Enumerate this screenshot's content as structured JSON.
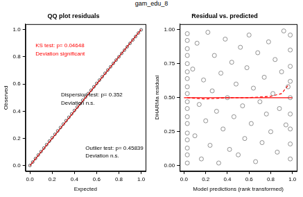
{
  "title": "gam_edu_8",
  "chart_data": [
    {
      "type": "scatter",
      "title": "QQ plot residuals",
      "x_label": "Expected",
      "y_label": "Observed",
      "xlim": [
        -0.04,
        1.04
      ],
      "ylim": [
        -0.04,
        1.04
      ],
      "xticks": [
        {
          "value": 0,
          "label": "0.0"
        },
        {
          "value": 0.2,
          "label": "0.2"
        },
        {
          "value": 0.4,
          "label": "0.4"
        },
        {
          "value": 0.6,
          "label": "0.6"
        },
        {
          "value": 0.8,
          "label": "0.8"
        },
        {
          "value": 1,
          "label": "1.0"
        }
      ],
      "yticks": [
        {
          "value": 0,
          "label": "0.0"
        },
        {
          "value": 0.2,
          "label": "0.2"
        },
        {
          "value": 0.4,
          "label": "0.4"
        },
        {
          "value": 0.6,
          "label": "0.6"
        },
        {
          "value": 0.8,
          "label": "0.8"
        },
        {
          "value": 1,
          "label": "1.0"
        }
      ],
      "grid": false,
      "series": [
        {
          "type": "scatter",
          "marker": "circle",
          "color": "#000000",
          "x": [
            0,
            0.025,
            0.05,
            0.075,
            0.1,
            0.125,
            0.15,
            0.175,
            0.2,
            0.225,
            0.25,
            0.275,
            0.3,
            0.325,
            0.35,
            0.375,
            0.4,
            0.425,
            0.45,
            0.475,
            0.5,
            0.525,
            0.55,
            0.575,
            0.6,
            0.625,
            0.65,
            0.675,
            0.7,
            0.725,
            0.75,
            0.775,
            0.8,
            0.825,
            0.85,
            0.875,
            0.9,
            0.925,
            0.95,
            0.975,
            1
          ],
          "values": [
            0.002,
            0.027,
            0.053,
            0.079,
            0.104,
            0.13,
            0.155,
            0.181,
            0.206,
            0.231,
            0.256,
            0.281,
            0.306,
            0.331,
            0.356,
            0.381,
            0.406,
            0.431,
            0.456,
            0.481,
            0.505,
            0.53,
            0.555,
            0.58,
            0.605,
            0.629,
            0.654,
            0.679,
            0.703,
            0.727,
            0.752,
            0.776,
            0.8,
            0.825,
            0.849,
            0.874,
            0.899,
            0.924,
            0.949,
            0.975,
            0.998
          ]
        },
        {
          "type": "line",
          "line_style": "solid",
          "color": "#ff0000",
          "x": [
            0,
            1
          ],
          "values": [
            0,
            1
          ]
        }
      ],
      "annotations": [
        {
          "text": "KS test: p= 0.04648",
          "color": "#ff0000"
        },
        {
          "text": "Deviation significant",
          "color": "#ff0000"
        },
        {
          "text": "Dispersion test: p= 0.352",
          "color": "#000000"
        },
        {
          "text": "Deviation n.s.",
          "color": "#000000"
        },
        {
          "text": "Outlier test: p= 0.45839",
          "color": "#000000"
        },
        {
          "text": "Deviation n.s.",
          "color": "#000000"
        }
      ]
    },
    {
      "type": "scatter",
      "title": "Residual vs. predicted",
      "x_label": "Model predictions (rank transformed)",
      "y_label": "DHARMa residual",
      "xlim": [
        -0.04,
        1.04
      ],
      "ylim": [
        -0.04,
        1.04
      ],
      "xticks": [
        {
          "value": 0,
          "label": "0.0"
        },
        {
          "value": 0.2,
          "label": "0.2"
        },
        {
          "value": 0.4,
          "label": "0.4"
        },
        {
          "value": 0.6,
          "label": "0.6"
        },
        {
          "value": 0.8,
          "label": "0.8"
        },
        {
          "value": 1,
          "label": "1.0"
        }
      ],
      "yticks": [
        {
          "value": 0,
          "label": "0.00"
        },
        {
          "value": 0.25,
          "label": "0.25"
        },
        {
          "value": 0.5,
          "label": "0.50"
        },
        {
          "value": 0.75,
          "label": "0.75"
        },
        {
          "value": 1,
          "label": "1.00"
        }
      ],
      "grid": false,
      "series": [
        {
          "type": "scatter",
          "marker": "circle",
          "color": "#4d4d4d",
          "x": [
            0.03,
            0.03,
            0.03,
            0.03,
            0.03,
            0.03,
            0.03,
            0.03,
            0.03,
            0.03,
            0.03,
            0.03,
            0.03,
            0.03,
            0.03,
            0.03,
            0.03,
            0.03,
            0.08,
            0.1,
            0.12,
            0.14,
            0.16,
            0.18,
            0.2,
            0.22,
            0.24,
            0.26,
            0.28,
            0.3,
            0.32,
            0.34,
            0.36,
            0.38,
            0.4,
            0.42,
            0.44,
            0.46,
            0.48,
            0.5,
            0.52,
            0.54,
            0.56,
            0.58,
            0.6,
            0.62,
            0.64,
            0.66,
            0.68,
            0.7,
            0.72,
            0.74,
            0.76,
            0.78,
            0.8,
            0.82,
            0.84,
            0.86,
            0.88,
            0.9,
            0.92,
            0.94,
            0.96,
            0.98,
            0.98,
            0.98,
            0.98,
            0.98,
            0.98,
            0.98,
            0.98,
            0.98
          ],
          "values": [
            0.02,
            0.08,
            0.13,
            0.19,
            0.24,
            0.31,
            0.36,
            0.42,
            0.47,
            0.53,
            0.58,
            0.64,
            0.69,
            0.75,
            0.81,
            0.86,
            0.92,
            0.97,
            0.71,
            0.22,
            0.9,
            0.45,
            0.05,
            0.63,
            0.33,
            0.98,
            0.15,
            0.55,
            0.81,
            0.4,
            0.02,
            0.68,
            0.27,
            0.93,
            0.5,
            0.12,
            0.76,
            0.36,
            0.6,
            0.08,
            0.87,
            0.44,
            0.2,
            0.72,
            0.96,
            0.31,
            0.57,
            0.03,
            0.83,
            0.47,
            0.17,
            0.65,
            0.38,
            0.91,
            0.25,
            0.53,
            0.78,
            0.1,
            0.42,
            0.69,
            0.99,
            0.3,
            0.58,
            0.05,
            0.16,
            0.27,
            0.38,
            0.5,
            0.62,
            0.73,
            0.85,
            0.96
          ]
        },
        {
          "type": "line",
          "line_style": "solid",
          "color": "#ff0000",
          "x": [
            0,
            1
          ],
          "values": [
            0.5,
            0.5
          ]
        },
        {
          "type": "line",
          "line_style": "dashed",
          "color": "#ff0000",
          "x": [
            0.03,
            0.2,
            0.4,
            0.6,
            0.8,
            0.9,
            0.97
          ],
          "values": [
            0.5,
            0.49,
            0.5,
            0.5,
            0.51,
            0.53,
            0.6
          ]
        }
      ]
    }
  ]
}
